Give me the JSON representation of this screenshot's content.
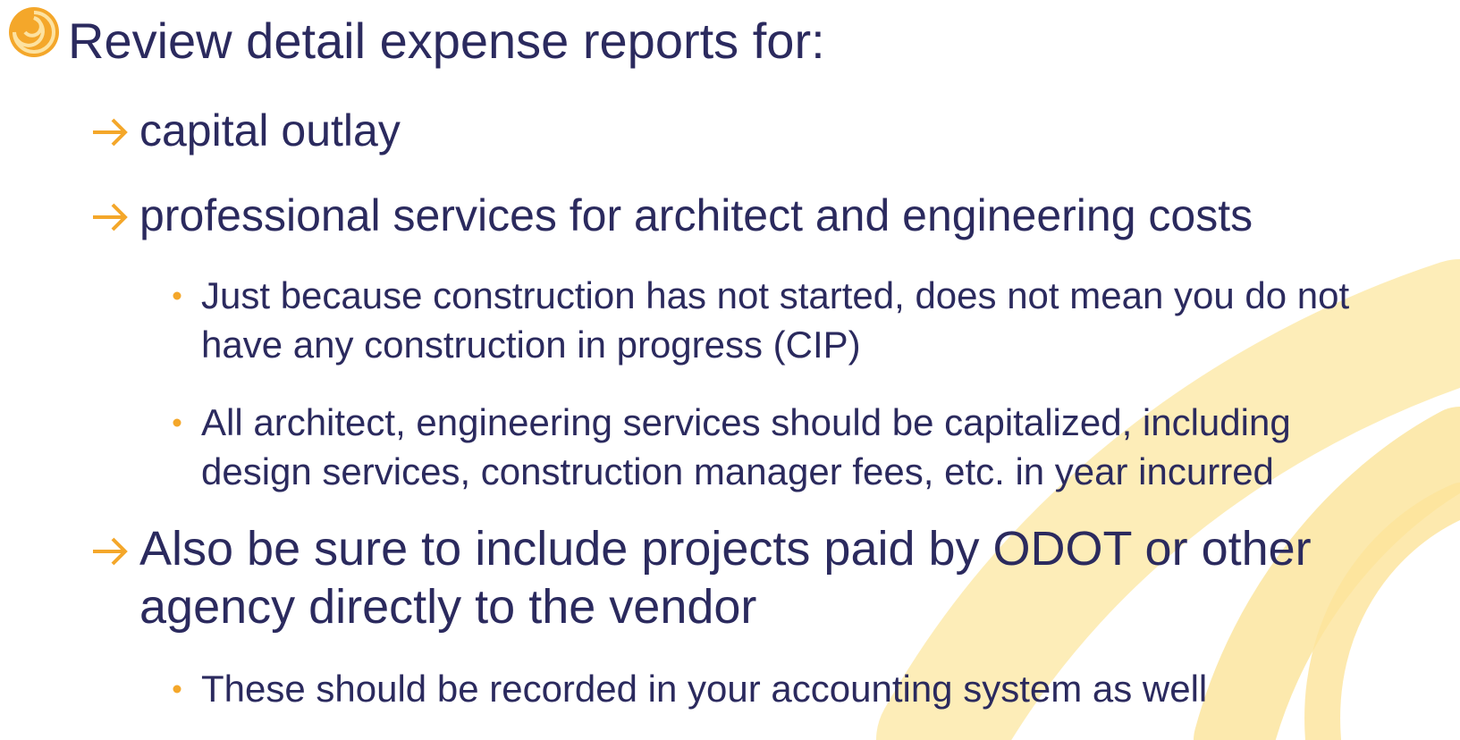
{
  "title": "Review detail expense reports for:",
  "items": [
    {
      "text": "capital outlay"
    },
    {
      "text": "professional services for architect and engineering costs",
      "subitems": [
        "Just because construction has not started, does not mean you do not have any construction in progress (CIP)",
        "All architect, engineering services should be capitalized, including design services, construction manager fees, etc. in year incurred"
      ]
    },
    {
      "text": "Also be sure to include projects paid by ODOT or other agency directly to the vendor",
      "subitems": [
        "These should be recorded in your accounting system as well"
      ]
    }
  ]
}
